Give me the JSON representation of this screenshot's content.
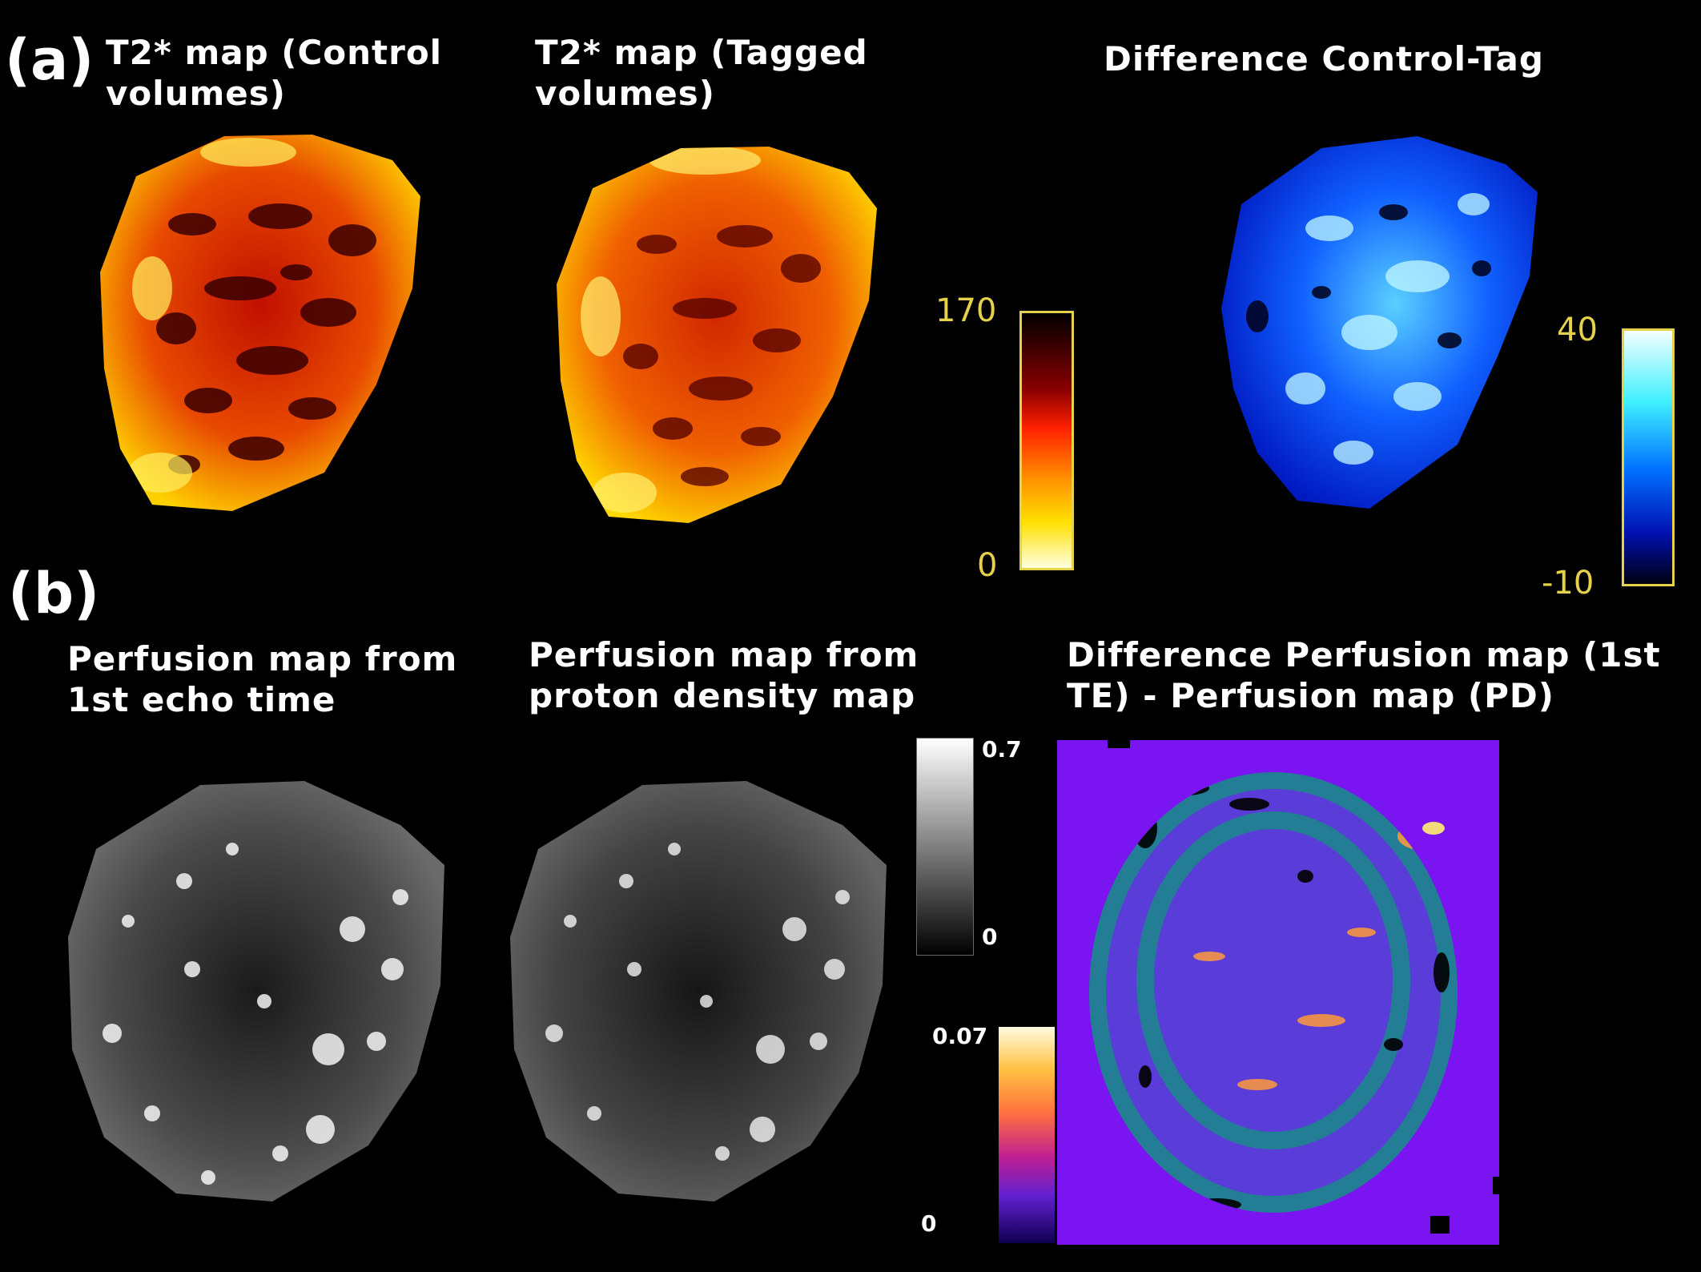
{
  "panel_a": {
    "label": "(a)",
    "titles": [
      "T2* map (Control\nvolumes)",
      "T2* map (Tagged\nvolumes)",
      "Difference Control-Tag"
    ],
    "colorbar_t2": {
      "max": "170",
      "min": "0",
      "colormap": "hot (white-yellow-red-black)"
    },
    "colorbar_diff": {
      "max": "40",
      "min": "-10",
      "colormap": "cool blue (black-blue-cyan-white)"
    }
  },
  "panel_b": {
    "label": "(b)",
    "titles": [
      "Perfusion map from\n1st echo time",
      "Perfusion map from\nproton density map",
      "Difference Perfusion map (1st\nTE) - Perfusion map (PD)"
    ],
    "colorbar_gray": {
      "max": "0.7",
      "min": "0",
      "colormap": "grayscale"
    },
    "colorbar_diff": {
      "max": "0.07",
      "min": "0",
      "colormap": "purple-orange-yellow"
    }
  },
  "colors": {
    "tick_yellow": "#e6d24a",
    "diff_bg": "#7a14f0"
  }
}
